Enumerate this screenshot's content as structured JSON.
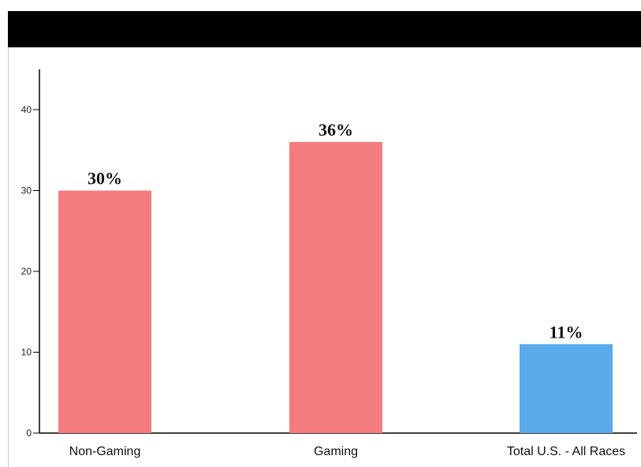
{
  "header": {
    "title": ""
  },
  "colors": {
    "header_band": "#000000",
    "axis": "#000000",
    "gaming_bar": "#f47c7f",
    "national_bar": "#5aaae9"
  },
  "chart_data": {
    "type": "bar",
    "title": "",
    "xlabel": "",
    "ylabel": "",
    "categories": [
      "Non-Gaming",
      "Gaming",
      "Total U.S. - All Races"
    ],
    "values": [
      30,
      36,
      11
    ],
    "data_labels": [
      "30%",
      "36%",
      "11%"
    ],
    "bar_colors": [
      "#f47c7f",
      "#f47c7f",
      "#5aaae9"
    ],
    "ylim": [
      0,
      45
    ],
    "yticks": [
      0,
      10,
      20,
      30,
      40
    ],
    "ytick_labels": [
      "0",
      "10",
      "20",
      "30",
      "40"
    ],
    "grid": false,
    "legend": "none"
  }
}
